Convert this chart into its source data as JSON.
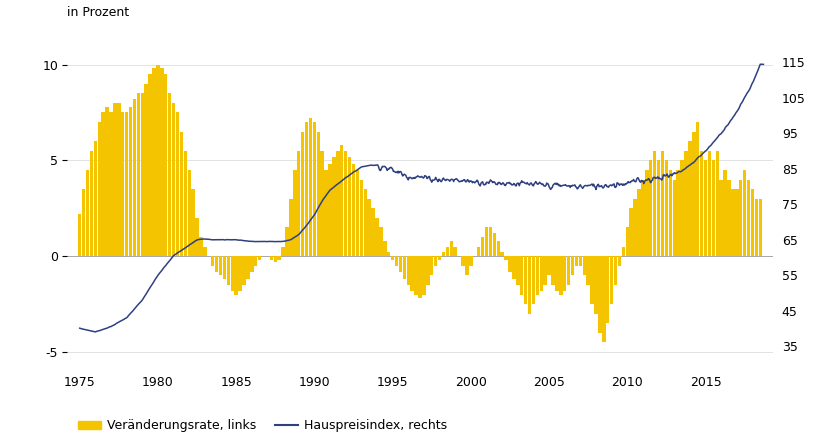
{
  "bar_color": "#F5C400",
  "line_color": "#2E4080",
  "ylabel_left": "in Prozent",
  "legend_bar": "Veränderungsrate, links",
  "legend_line": "Hauspreisindex, rechts",
  "ylim_left": [
    -5.8,
    11.5
  ],
  "ylim_right": [
    29.0,
    122.5
  ],
  "yticks_left": [
    -5,
    0,
    5,
    10
  ],
  "yticks_right": [
    35,
    45,
    55,
    65,
    75,
    85,
    95,
    105,
    115
  ],
  "xticks": [
    1975,
    1980,
    1985,
    1990,
    1995,
    2000,
    2005,
    2010,
    2015
  ],
  "xlim": [
    1974.2,
    2019.3
  ],
  "bar_width": 0.22,
  "bar_quarters": [
    1975.0,
    1975.25,
    1975.5,
    1975.75,
    1976.0,
    1976.25,
    1976.5,
    1976.75,
    1977.0,
    1977.25,
    1977.5,
    1977.75,
    1978.0,
    1978.25,
    1978.5,
    1978.75,
    1979.0,
    1979.25,
    1979.5,
    1979.75,
    1980.0,
    1980.25,
    1980.5,
    1980.75,
    1981.0,
    1981.25,
    1981.5,
    1981.75,
    1982.0,
    1982.25,
    1982.5,
    1982.75,
    1983.0,
    1983.25,
    1983.5,
    1983.75,
    1984.0,
    1984.25,
    1984.5,
    1984.75,
    1985.0,
    1985.25,
    1985.5,
    1985.75,
    1986.0,
    1986.25,
    1986.5,
    1986.75,
    1987.0,
    1987.25,
    1987.5,
    1987.75,
    1988.0,
    1988.25,
    1988.5,
    1988.75,
    1989.0,
    1989.25,
    1989.5,
    1989.75,
    1990.0,
    1990.25,
    1990.5,
    1990.75,
    1991.0,
    1991.25,
    1991.5,
    1991.75,
    1992.0,
    1992.25,
    1992.5,
    1992.75,
    1993.0,
    1993.25,
    1993.5,
    1993.75,
    1994.0,
    1994.25,
    1994.5,
    1994.75,
    1995.0,
    1995.25,
    1995.5,
    1995.75,
    1996.0,
    1996.25,
    1996.5,
    1996.75,
    1997.0,
    1997.25,
    1997.5,
    1997.75,
    1998.0,
    1998.25,
    1998.5,
    1998.75,
    1999.0,
    1999.25,
    1999.5,
    1999.75,
    2000.0,
    2000.25,
    2000.5,
    2000.75,
    2001.0,
    2001.25,
    2001.5,
    2001.75,
    2002.0,
    2002.25,
    2002.5,
    2002.75,
    2003.0,
    2003.25,
    2003.5,
    2003.75,
    2004.0,
    2004.25,
    2004.5,
    2004.75,
    2005.0,
    2005.25,
    2005.5,
    2005.75,
    2006.0,
    2006.25,
    2006.5,
    2006.75,
    2007.0,
    2007.25,
    2007.5,
    2007.75,
    2008.0,
    2008.25,
    2008.5,
    2008.75,
    2009.0,
    2009.25,
    2009.5,
    2009.75,
    2010.0,
    2010.25,
    2010.5,
    2010.75,
    2011.0,
    2011.25,
    2011.5,
    2011.75,
    2012.0,
    2012.25,
    2012.5,
    2012.75,
    2013.0,
    2013.25,
    2013.5,
    2013.75,
    2014.0,
    2014.25,
    2014.5,
    2014.75,
    2015.0,
    2015.25,
    2015.5,
    2015.75,
    2016.0,
    2016.25,
    2016.5,
    2016.75,
    2017.0,
    2017.25,
    2017.5,
    2017.75,
    2018.0,
    2018.25,
    2018.5
  ],
  "bar_values": [
    2.2,
    3.5,
    4.5,
    5.5,
    6.0,
    7.0,
    7.5,
    7.8,
    7.5,
    8.0,
    8.0,
    7.5,
    7.5,
    7.8,
    8.2,
    8.5,
    8.5,
    9.0,
    9.5,
    9.8,
    10.0,
    9.8,
    9.5,
    8.5,
    8.0,
    7.5,
    6.5,
    5.5,
    4.5,
    3.5,
    2.0,
    1.0,
    0.5,
    0.0,
    -0.5,
    -0.8,
    -1.0,
    -1.2,
    -1.5,
    -1.8,
    -2.0,
    -1.8,
    -1.5,
    -1.2,
    -0.8,
    -0.5,
    -0.2,
    0.0,
    0.0,
    -0.2,
    -0.3,
    -0.2,
    0.5,
    1.5,
    3.0,
    4.5,
    5.5,
    6.5,
    7.0,
    7.2,
    7.0,
    6.5,
    5.5,
    4.5,
    4.8,
    5.2,
    5.5,
    5.8,
    5.5,
    5.2,
    4.8,
    4.5,
    4.0,
    3.5,
    3.0,
    2.5,
    2.0,
    1.5,
    0.8,
    0.2,
    -0.2,
    -0.5,
    -0.8,
    -1.2,
    -1.5,
    -1.8,
    -2.0,
    -2.2,
    -2.0,
    -1.5,
    -1.0,
    -0.5,
    -0.2,
    0.2,
    0.5,
    0.8,
    0.5,
    0.0,
    -0.5,
    -1.0,
    -0.5,
    0.0,
    0.5,
    1.0,
    1.5,
    1.5,
    1.2,
    0.8,
    0.2,
    -0.2,
    -0.8,
    -1.2,
    -1.5,
    -2.0,
    -2.5,
    -3.0,
    -2.5,
    -2.0,
    -1.8,
    -1.5,
    -1.0,
    -1.5,
    -1.8,
    -2.0,
    -1.8,
    -1.5,
    -1.0,
    -0.5,
    -0.5,
    -1.0,
    -1.5,
    -2.5,
    -3.0,
    -4.0,
    -4.5,
    -3.5,
    -2.5,
    -1.5,
    -0.5,
    0.5,
    1.5,
    2.5,
    3.0,
    3.5,
    4.0,
    4.5,
    5.0,
    5.5,
    5.0,
    5.5,
    5.0,
    4.5,
    4.0,
    4.5,
    5.0,
    5.5,
    6.0,
    6.5,
    7.0,
    5.5,
    5.0,
    5.5,
    5.0,
    5.5,
    4.0,
    4.5,
    4.0,
    3.5,
    3.5,
    4.0,
    4.5,
    4.0,
    3.5,
    3.0,
    3.0
  ],
  "line_key_t": [
    1975.0,
    1975.5,
    1976.0,
    1977.0,
    1978.0,
    1979.0,
    1980.0,
    1981.0,
    1982.0,
    1982.5,
    1983.0,
    1983.5,
    1984.0,
    1985.0,
    1986.0,
    1987.0,
    1988.0,
    1988.5,
    1989.0,
    1989.5,
    1990.0,
    1990.5,
    1991.0,
    1992.0,
    1993.0,
    1993.5,
    1994.0,
    1994.5,
    1995.0,
    1995.5,
    1996.0,
    1997.0,
    1998.0,
    1999.0,
    2000.0,
    2001.0,
    2002.0,
    2003.0,
    2004.0,
    2005.0,
    2006.0,
    2007.0,
    2008.0,
    2009.0,
    2010.0,
    2011.0,
    2012.0,
    2013.0,
    2013.5,
    2014.0,
    2014.5,
    2015.0,
    2015.5,
    2016.0,
    2016.5,
    2017.0,
    2017.5,
    2018.0,
    2018.5
  ],
  "line_key_v": [
    40.0,
    39.5,
    39.0,
    40.5,
    43.0,
    48.0,
    55.0,
    60.5,
    63.5,
    65.0,
    65.2,
    65.0,
    65.0,
    65.0,
    64.5,
    64.5,
    64.5,
    65.0,
    66.5,
    69.0,
    72.0,
    76.0,
    79.0,
    82.5,
    85.5,
    86.0,
    86.0,
    85.5,
    84.5,
    83.8,
    83.0,
    82.5,
    82.0,
    81.8,
    81.5,
    81.2,
    81.0,
    80.8,
    80.5,
    80.3,
    80.2,
    80.0,
    80.2,
    80.5,
    81.0,
    81.8,
    82.5,
    83.5,
    84.5,
    86.0,
    88.0,
    90.0,
    92.5,
    95.0,
    98.0,
    101.0,
    105.0,
    109.0,
    114.5
  ]
}
